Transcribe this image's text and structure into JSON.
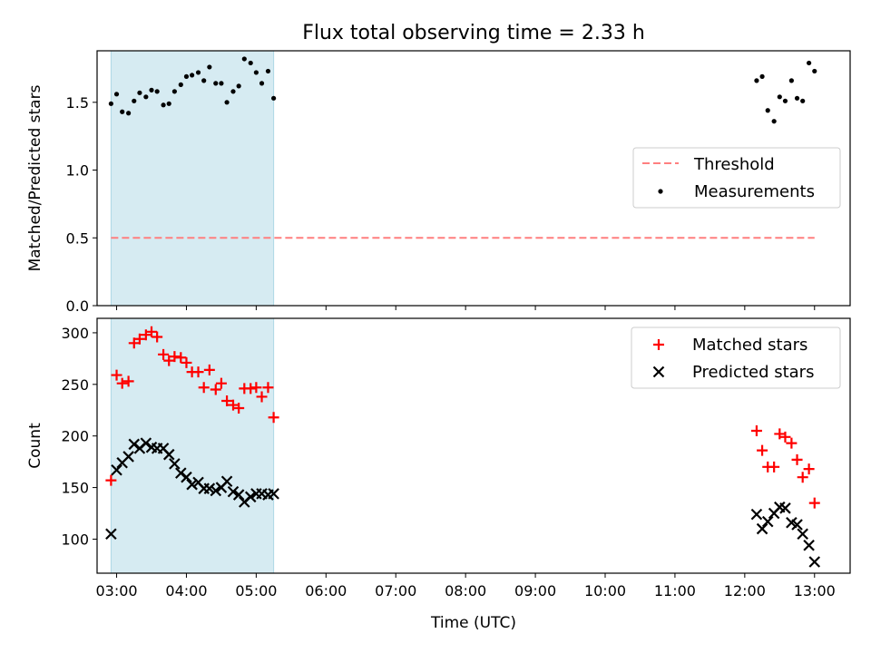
{
  "title": "Flux total observing time = 2.33 h",
  "colors": {
    "highlight": "#add8e6",
    "threshold": "#ff7f7f",
    "matched": "#ff0000",
    "predicted": "#000000",
    "measurement": "#000000"
  },
  "chart_data": [
    {
      "type": "scatter",
      "panel": "top",
      "ylabel": "Matched/Predicted stars",
      "ylim": [
        0,
        1.88
      ],
      "yticks": [
        0.0,
        0.5,
        1.0,
        1.5
      ],
      "ytick_labels": [
        "0.0",
        "0.5",
        "1.0",
        "1.5"
      ],
      "xlim": [
        2.72,
        13.51
      ],
      "highlight_span": [
        2.92,
        5.25
      ],
      "threshold": {
        "x": [
          2.92,
          13.0
        ],
        "y": 0.5
      },
      "legend": {
        "placement": "center-right",
        "entries": [
          "Threshold",
          "Measurements"
        ]
      },
      "series": [
        {
          "name": "Measurements",
          "x": [
            2.92,
            3.0,
            3.08,
            3.17,
            3.25,
            3.33,
            3.42,
            3.5,
            3.58,
            3.67,
            3.75,
            3.83,
            3.92,
            4.0,
            4.08,
            4.17,
            4.25,
            4.33,
            4.42,
            4.5,
            4.58,
            4.67,
            4.75,
            4.83,
            4.92,
            5.0,
            5.08,
            5.17,
            5.25,
            12.17,
            12.25,
            12.33,
            12.42,
            12.5,
            12.58,
            12.67,
            12.75,
            12.83,
            12.92,
            13.0
          ],
          "y": [
            1.49,
            1.56,
            1.43,
            1.42,
            1.51,
            1.57,
            1.54,
            1.59,
            1.58,
            1.48,
            1.49,
            1.58,
            1.63,
            1.69,
            1.7,
            1.72,
            1.66,
            1.76,
            1.64,
            1.64,
            1.5,
            1.58,
            1.62,
            1.82,
            1.79,
            1.72,
            1.64,
            1.73,
            1.53,
            1.66,
            1.69,
            1.44,
            1.36,
            1.54,
            1.51,
            1.66,
            1.53,
            1.51,
            1.79,
            1.73
          ]
        }
      ]
    },
    {
      "type": "scatter",
      "panel": "bottom",
      "xlabel": "Time (UTC)",
      "ylabel": "Count",
      "ylim": [
        67,
        314
      ],
      "yticks": [
        100,
        150,
        200,
        250,
        300
      ],
      "ytick_labels": [
        "100",
        "150",
        "200",
        "250",
        "300"
      ],
      "xlim": [
        2.72,
        13.51
      ],
      "xticks": [
        3,
        4,
        5,
        6,
        7,
        8,
        9,
        10,
        11,
        12,
        13
      ],
      "xtick_labels": [
        "03:00",
        "04:00",
        "05:00",
        "06:00",
        "07:00",
        "08:00",
        "09:00",
        "10:00",
        "11:00",
        "12:00",
        "13:00"
      ],
      "highlight_span": [
        2.92,
        5.25
      ],
      "legend": {
        "placement": "top-right",
        "entries": [
          "Matched stars",
          "Predicted stars"
        ]
      },
      "series": [
        {
          "name": "Matched stars",
          "x": [
            2.92,
            3.0,
            3.08,
            3.17,
            3.25,
            3.33,
            3.42,
            3.5,
            3.58,
            3.67,
            3.75,
            3.83,
            3.92,
            4.0,
            4.08,
            4.17,
            4.25,
            4.33,
            4.42,
            4.5,
            4.58,
            4.67,
            4.75,
            4.83,
            4.92,
            5.0,
            5.08,
            5.17,
            5.25,
            12.17,
            12.25,
            12.33,
            12.42,
            12.5,
            12.58,
            12.67,
            12.75,
            12.83,
            12.92,
            13.0
          ],
          "y": [
            157,
            259,
            251,
            253,
            290,
            294,
            298,
            301,
            296,
            279,
            273,
            277,
            276,
            271,
            262,
            262,
            247,
            264,
            245,
            251,
            234,
            230,
            227,
            246,
            246,
            247,
            238,
            247,
            218,
            205,
            186,
            170,
            170,
            202,
            199,
            193,
            177,
            160,
            168,
            135
          ]
        },
        {
          "name": "Predicted stars",
          "x": [
            2.92,
            3.0,
            3.08,
            3.17,
            3.25,
            3.33,
            3.42,
            3.5,
            3.58,
            3.67,
            3.75,
            3.83,
            3.92,
            4.0,
            4.08,
            4.17,
            4.25,
            4.33,
            4.42,
            4.5,
            4.58,
            4.67,
            4.75,
            4.83,
            4.92,
            5.0,
            5.08,
            5.17,
            5.25,
            12.17,
            12.25,
            12.33,
            12.42,
            12.5,
            12.58,
            12.67,
            12.75,
            12.83,
            12.92,
            13.0
          ],
          "y": [
            105,
            167,
            174,
            180,
            192,
            188,
            193,
            189,
            188,
            188,
            182,
            173,
            164,
            160,
            153,
            155,
            149,
            149,
            147,
            150,
            156,
            146,
            143,
            136,
            141,
            144,
            144,
            143,
            144,
            124,
            110,
            117,
            125,
            131,
            130,
            116,
            114,
            105,
            94,
            78
          ]
        }
      ]
    }
  ]
}
